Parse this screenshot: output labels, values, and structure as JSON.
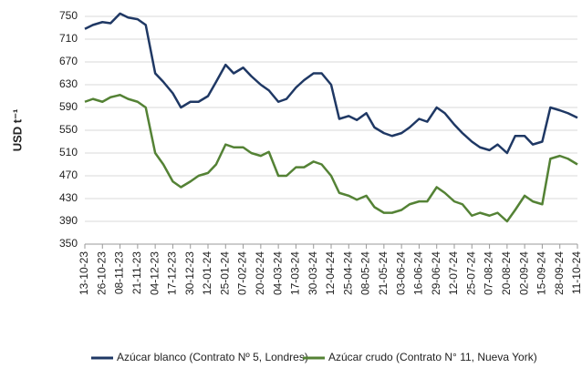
{
  "chart_data": {
    "type": "line",
    "y_label": "USD t⁻¹",
    "x": [
      "13-10-23",
      "19-10-23",
      "26-10-23",
      "01-11-23",
      "08-11-23",
      "14-11-23",
      "21-11-23",
      "27-11-23",
      "04-12-23",
      "10-12-23",
      "17-12-23",
      "23-12-23",
      "30-12-23",
      "05-01-24",
      "12-01-24",
      "18-01-24",
      "25-01-24",
      "31-01-24",
      "07-02-24",
      "13-02-24",
      "20-02-24",
      "26-02-24",
      "04-03-24",
      "10-03-24",
      "17-03-24",
      "23-03-24",
      "30-03-24",
      "05-04-24",
      "12-04-24",
      "18-04-24",
      "25-04-24",
      "01-05-24",
      "08-05-24",
      "14-05-24",
      "21-05-24",
      "27-05-24",
      "03-06-24",
      "09-06-24",
      "16-06-24",
      "22-06-24",
      "29-06-24",
      "05-07-24",
      "12-07-24",
      "18-07-24",
      "25-07-24",
      "31-07-24",
      "07-08-24",
      "13-08-24",
      "20-08-24",
      "26-08-24",
      "02-09-24",
      "08-09-24",
      "15-09-24",
      "21-09-24",
      "28-09-24",
      "04-10-24",
      "11-10-24"
    ],
    "series": [
      {
        "name": "Azúcar blanco (Contrato Nº 5, Londres)",
        "color": "#1f3864",
        "values": [
          728,
          735,
          740,
          738,
          755,
          748,
          745,
          735,
          650,
          635,
          615,
          590,
          600,
          600,
          610,
          635,
          665,
          650,
          660,
          645,
          630,
          620,
          600,
          605,
          625,
          638,
          650,
          650,
          630,
          570,
          575,
          568,
          580,
          555,
          545,
          540,
          545,
          555,
          570,
          565,
          590,
          580,
          560,
          545,
          530,
          520,
          515,
          525,
          510,
          540,
          540,
          525,
          530,
          590,
          585,
          580,
          572
        ]
      },
      {
        "name": "Azúcar crudo (Contrato N° 11, Nueva York)",
        "color": "#548235",
        "values": [
          600,
          605,
          600,
          608,
          612,
          605,
          600,
          590,
          510,
          490,
          460,
          450,
          460,
          470,
          475,
          490,
          525,
          520,
          520,
          510,
          505,
          512,
          470,
          470,
          485,
          485,
          495,
          490,
          470,
          440,
          435,
          428,
          435,
          415,
          405,
          405,
          410,
          420,
          425,
          425,
          450,
          440,
          425,
          420,
          400,
          405,
          400,
          405,
          390,
          410,
          435,
          425,
          420,
          500,
          505,
          500,
          490
        ]
      }
    ],
    "xticks": [
      "13-10-23",
      "26-10-23",
      "08-11-23",
      "21-11-23",
      "04-12-23",
      "17-12-23",
      "30-12-23",
      "12-01-24",
      "25-01-24",
      "07-02-24",
      "20-02-24",
      "04-03-24",
      "17-03-24",
      "30-03-24",
      "12-04-24",
      "25-04-24",
      "08-05-24",
      "21-05-24",
      "03-06-24",
      "16-06-24",
      "29-06-24",
      "12-07-24",
      "25-07-24",
      "07-08-24",
      "20-08-24",
      "02-09-24",
      "15-09-24",
      "28-09-24",
      "11-10-24"
    ],
    "ylim": [
      350,
      750
    ],
    "yticks": [
      350,
      390,
      430,
      470,
      510,
      550,
      590,
      630,
      670,
      710,
      750
    ],
    "grid": true
  }
}
